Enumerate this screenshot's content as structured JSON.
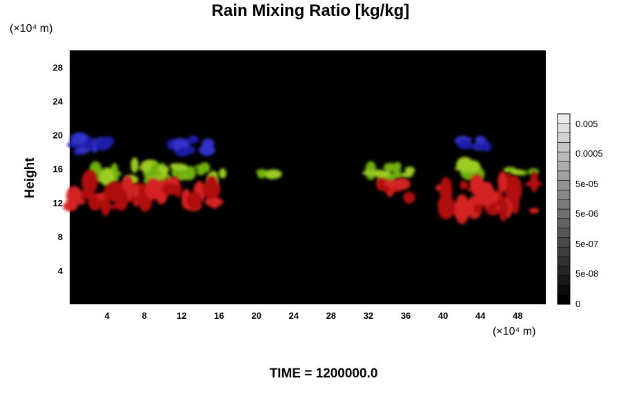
{
  "chart_data": {
    "type": "heatmap",
    "title": "Rain Mixing Ratio [kg/kg]",
    "ylabel": "Height",
    "y_unit": "(×10⁴ m)",
    "x_unit": "(×10⁴ m)",
    "time_label": "TIME = 1200000.0",
    "xlim": [
      0,
      51
    ],
    "ylim": [
      0,
      30
    ],
    "x_ticks": [
      4,
      8,
      12,
      16,
      20,
      24,
      28,
      32,
      36,
      40,
      44,
      48
    ],
    "y_ticks": [
      4,
      8,
      12,
      16,
      20,
      24,
      28
    ],
    "colorbar": {
      "labels": [
        "0.005",
        "0.0005",
        "5e-05",
        "5e-06",
        "5e-07",
        "5e-08",
        "0"
      ],
      "levels": 20
    },
    "regions": [
      {
        "color": "blue",
        "x": [
          0,
          6
        ],
        "y": [
          18,
          19.5
        ]
      },
      {
        "color": "blue",
        "x": [
          11,
          15
        ],
        "y": [
          18,
          19.5
        ]
      },
      {
        "color": "blue",
        "x": [
          42,
          46
        ],
        "y": [
          18.5,
          19.5
        ]
      },
      {
        "color": "green",
        "x": [
          2,
          17
        ],
        "y": [
          14.5,
          16.5
        ]
      },
      {
        "color": "green",
        "x": [
          20,
          22
        ],
        "y": [
          15,
          16
        ]
      },
      {
        "color": "green",
        "x": [
          32,
          37
        ],
        "y": [
          14.5,
          16.5
        ]
      },
      {
        "color": "green",
        "x": [
          42,
          44
        ],
        "y": [
          15,
          16.5
        ]
      },
      {
        "color": "green",
        "x": [
          47,
          50
        ],
        "y": [
          15.5,
          16
        ]
      },
      {
        "color": "red",
        "x": [
          0,
          16
        ],
        "y": [
          11.5,
          14.5
        ]
      },
      {
        "color": "red",
        "x": [
          33,
          37
        ],
        "y": [
          12.5,
          14.5
        ]
      },
      {
        "color": "red",
        "x": [
          39,
          50
        ],
        "y": [
          11,
          14.5
        ]
      }
    ]
  }
}
